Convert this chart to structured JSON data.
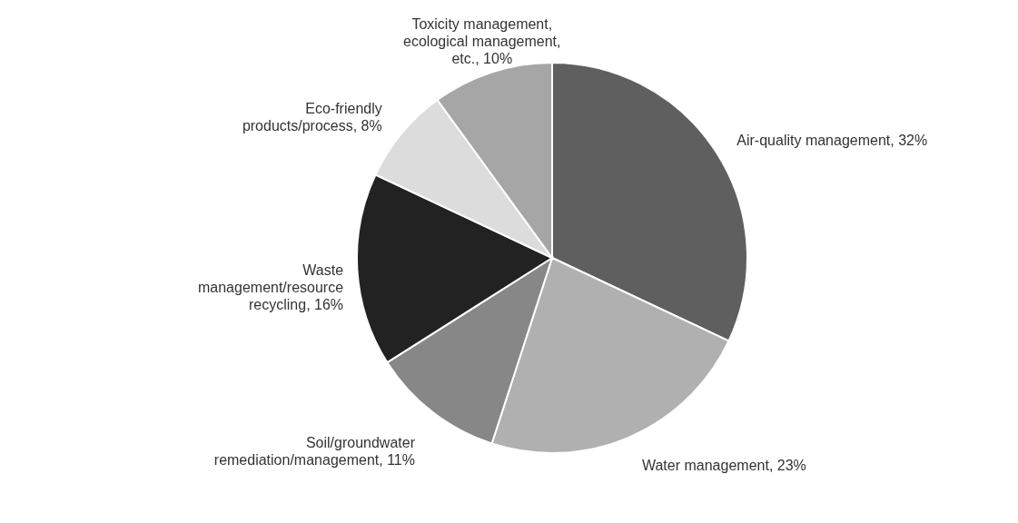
{
  "chart_data": {
    "type": "pie",
    "categories": [
      "Air-quality management",
      "Water management",
      "Soil/groundwater remediation/management",
      "Waste management/resource recycling",
      "Eco-friendly products/process",
      "Toxicity management, ecological management, etc."
    ],
    "values": [
      32,
      23,
      11,
      16,
      8,
      10
    ],
    "value_labels": [
      "32%",
      "23%",
      "11%",
      "16%",
      "8%",
      "10%"
    ],
    "colors": [
      "#5f5f5f",
      "#b0b0b0",
      "#878787",
      "#222222",
      "#dcdcdc",
      "#a6a6a6"
    ]
  }
}
